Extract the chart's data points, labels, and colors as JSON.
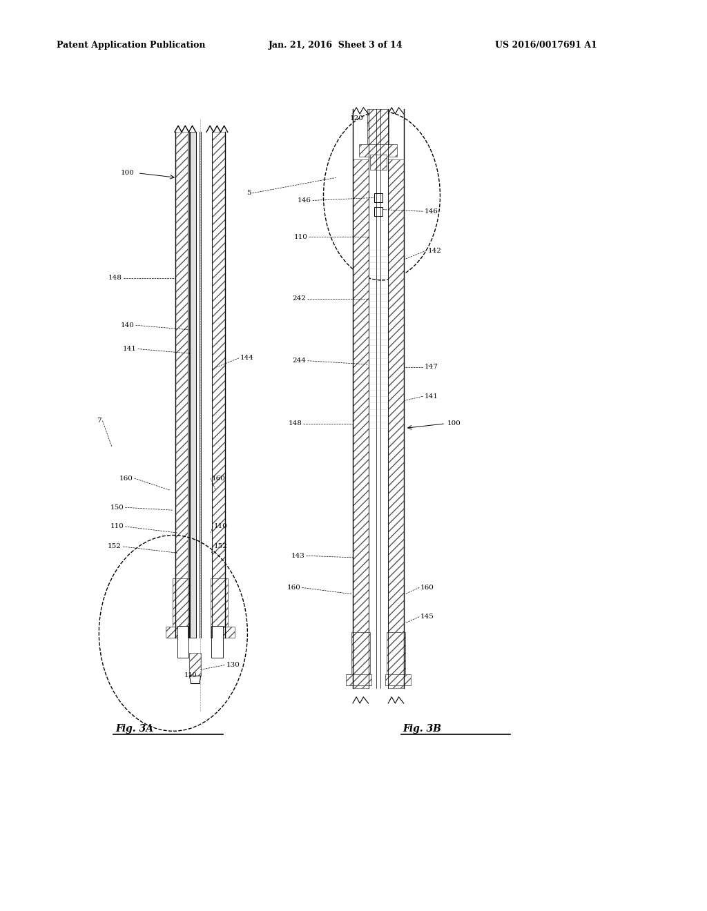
{
  "bg_color": "#ffffff",
  "header_text": "Patent Application Publication",
  "header_date": "Jan. 21, 2016  Sheet 3 of 14",
  "header_patent": "US 2016/0017691 A1",
  "fig3a_label": "Fig. 3A",
  "fig3b_label": "Fig. 3B"
}
